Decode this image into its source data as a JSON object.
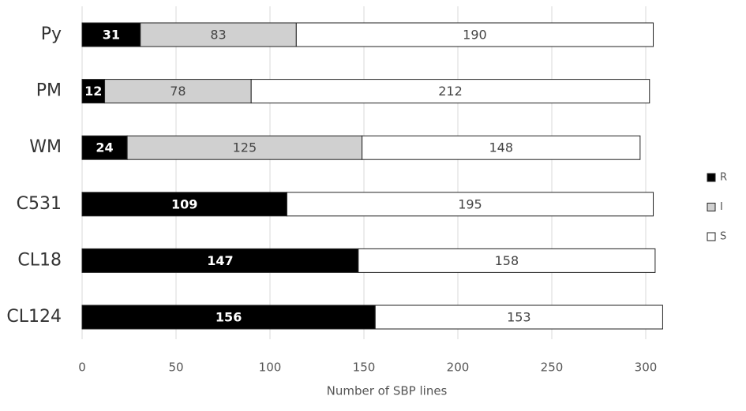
{
  "chart_data": {
    "type": "stacked-bar-horizontal",
    "categories": [
      "Py",
      "PM",
      "WM",
      "C531",
      "CL18",
      "CL124"
    ],
    "series": [
      {
        "name": "R",
        "color": "#000000",
        "values": [
          31,
          12,
          24,
          109,
          147,
          156
        ]
      },
      {
        "name": "I",
        "color": "#d0d0d0",
        "values": [
          83,
          78,
          125,
          null,
          null,
          null
        ]
      },
      {
        "name": "S",
        "color": "#ffffff",
        "values": [
          190,
          212,
          148,
          195,
          158,
          153
        ]
      }
    ],
    "x_label": "Number of SBP lines",
    "xlim": [
      0,
      310
    ],
    "xticks": [
      0,
      50,
      100,
      150,
      200,
      250,
      300
    ],
    "grid": true
  }
}
